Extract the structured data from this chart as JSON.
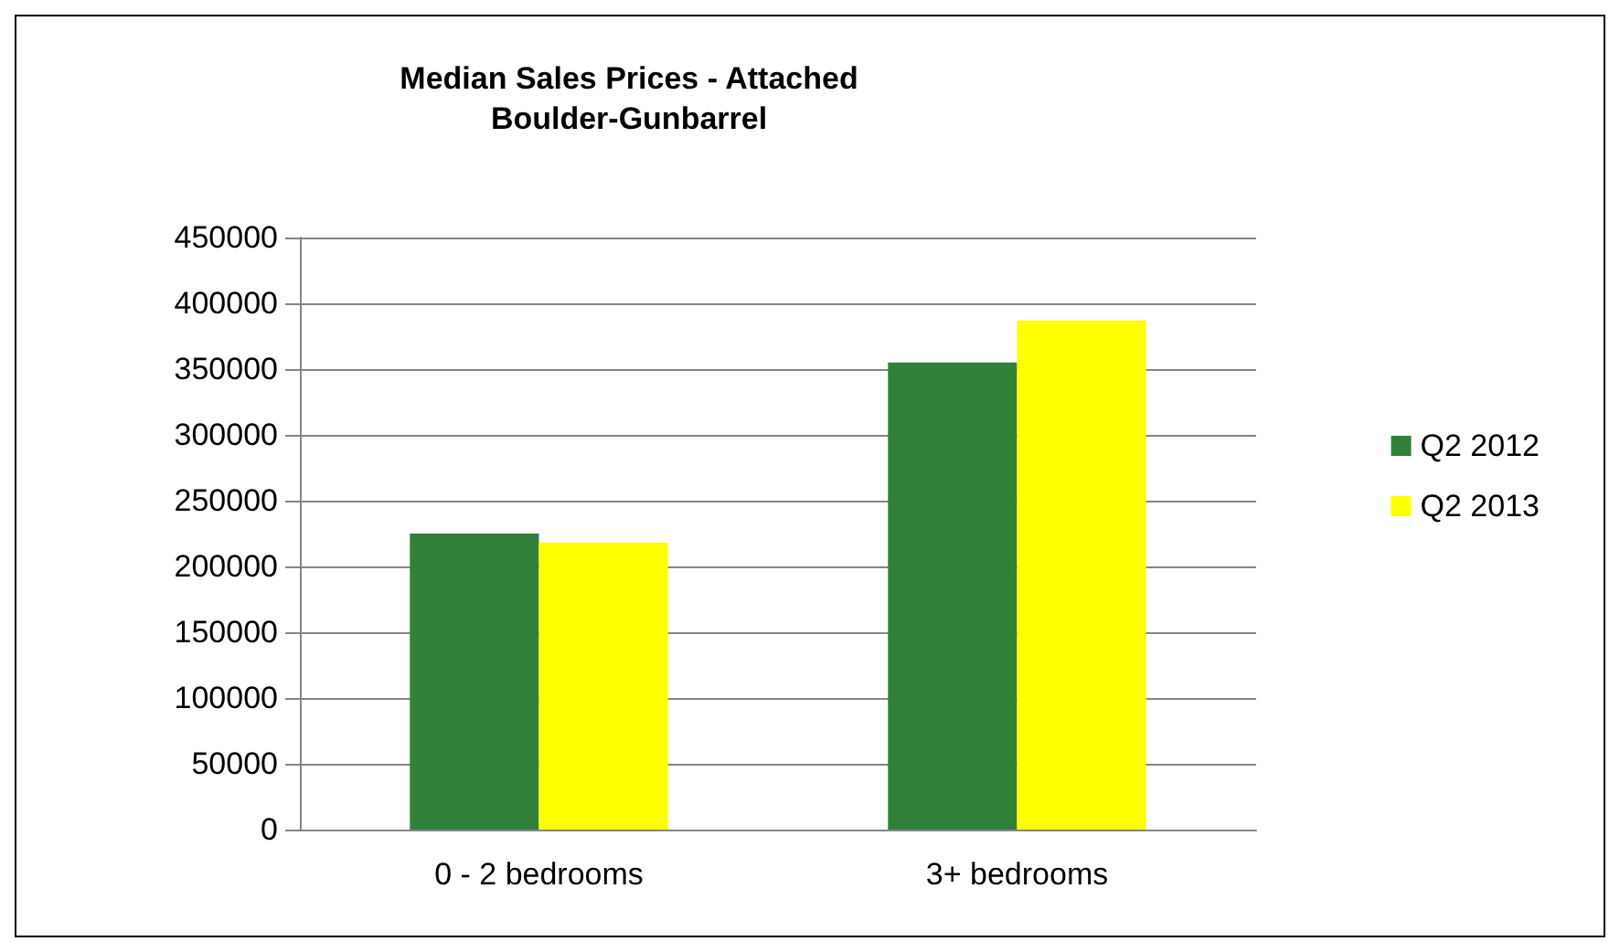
{
  "chart_data": {
    "type": "bar",
    "title": "Median Sales Prices - Attached\nBoulder-Gunbarrel",
    "categories": [
      "0 - 2 bedrooms",
      "3+ bedrooms"
    ],
    "series": [
      {
        "name": "Q2 2012",
        "color": "#31803a",
        "values": [
          225000,
          355000
        ]
      },
      {
        "name": "Q2 2013",
        "color": "#ffff00",
        "values": [
          218000,
          387000
        ]
      }
    ],
    "ylim": [
      0,
      450000
    ],
    "yticks": [
      0,
      50000,
      100000,
      150000,
      200000,
      250000,
      300000,
      350000,
      400000,
      450000
    ],
    "grid": "y",
    "legend": "right"
  }
}
